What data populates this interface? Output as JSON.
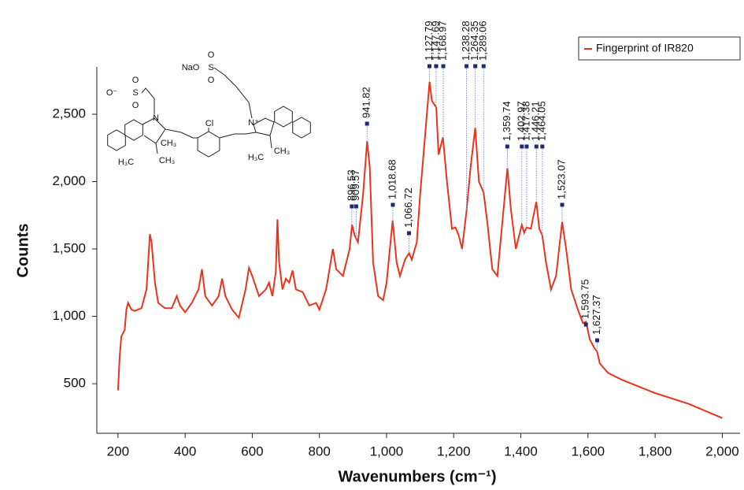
{
  "chart_data": {
    "type": "line",
    "x_label": "Wavenumbers (cm⁻¹)",
    "y_label": "Counts",
    "xlim": [
      137,
      2053
    ],
    "ylim": [
      132,
      2851
    ],
    "xticks": [
      200,
      400,
      600,
      800,
      {
        "value": 1000,
        "label": "1,000"
      },
      {
        "value": 1200,
        "label": "1,200"
      },
      {
        "value": 1400,
        "label": "1,400"
      },
      {
        "value": 1600,
        "label": "1,600"
      },
      {
        "value": 1800,
        "label": "1,800"
      },
      {
        "value": 2000,
        "label": "2,000"
      }
    ],
    "yticks": [
      500,
      {
        "value": 1000,
        "label": "1,000"
      },
      {
        "value": 1500,
        "label": "1,500"
      },
      {
        "value": 2000,
        "label": "2,000"
      },
      {
        "value": 2500,
        "label": "2,500"
      }
    ],
    "legend": "top-right",
    "x": [
      200,
      205,
      210,
      220,
      225,
      230,
      240,
      250,
      270,
      285,
      295,
      300,
      310,
      320,
      340,
      360,
      375,
      385,
      400,
      420,
      440,
      450,
      460,
      480,
      500,
      510,
      520,
      540,
      560,
      580,
      590,
      600,
      620,
      640,
      650,
      660,
      670,
      675,
      680,
      690,
      700,
      710,
      720,
      730,
      750,
      770,
      790,
      800,
      820,
      840,
      850,
      870,
      890,
      897,
      905,
      915,
      930,
      942,
      950,
      960,
      975,
      990,
      1000,
      1018,
      1030,
      1040,
      1055,
      1067,
      1075,
      1090,
      1100,
      1110,
      1128,
      1135,
      1148,
      1155,
      1168,
      1180,
      1195,
      1205,
      1215,
      1225,
      1238,
      1250,
      1264,
      1275,
      1289,
      1300,
      1315,
      1330,
      1345,
      1360,
      1370,
      1385,
      1403,
      1410,
      1417,
      1430,
      1446,
      1455,
      1464,
      1475,
      1490,
      1505,
      1523,
      1535,
      1550,
      1570,
      1585,
      1594,
      1605,
      1620,
      1627,
      1635,
      1660,
      1700,
      1800,
      1900,
      2000
    ],
    "series": [
      {
        "name": "Fingerprint of IR820",
        "color": "#e8341c",
        "values": [
          450,
          700,
          850,
          900,
          1050,
          1100,
          1050,
          1040,
          1060,
          1200,
          1610,
          1550,
          1250,
          1100,
          1060,
          1060,
          1150,
          1080,
          1030,
          1100,
          1200,
          1350,
          1150,
          1080,
          1150,
          1280,
          1150,
          1050,
          990,
          1200,
          1360,
          1300,
          1150,
          1200,
          1250,
          1150,
          1330,
          1720,
          1400,
          1200,
          1280,
          1250,
          1340,
          1200,
          1180,
          1080,
          1100,
          1050,
          1200,
          1500,
          1350,
          1300,
          1500,
          1680,
          1600,
          1550,
          1900,
          2300,
          2100,
          1400,
          1150,
          1120,
          1250,
          1710,
          1400,
          1300,
          1420,
          1470,
          1420,
          1550,
          1900,
          2200,
          2740,
          2600,
          2550,
          2200,
          2330,
          2000,
          1650,
          1660,
          1600,
          1500,
          1780,
          2100,
          2400,
          2000,
          1920,
          1700,
          1350,
          1300,
          1700,
          2100,
          1800,
          1500,
          1680,
          1620,
          1660,
          1650,
          1850,
          1650,
          1600,
          1400,
          1200,
          1300,
          1700,
          1500,
          1200,
          1050,
          950,
          960,
          830,
          760,
          740,
          650,
          580,
          530,
          430,
          350,
          245
        ]
      }
    ],
    "annotations": [
      {
        "x": 896.53,
        "label": "896.53"
      },
      {
        "x": 909.57,
        "label": "909.57"
      },
      {
        "x": 941.82,
        "label": "941.82"
      },
      {
        "x": 1018.68,
        "label": "1,018.68"
      },
      {
        "x": 1066.72,
        "label": "1,066.72"
      },
      {
        "x": 1127.79,
        "label": "1,127.79"
      },
      {
        "x": 1147.69,
        "label": "1,147.69"
      },
      {
        "x": 1168.97,
        "label": "1,168.97"
      },
      {
        "x": 1238.28,
        "label": "1,238.28"
      },
      {
        "x": 1264.35,
        "label": "1,264.35"
      },
      {
        "x": 1289.06,
        "label": "1,289.06"
      },
      {
        "x": 1359.74,
        "label": "1,359.74"
      },
      {
        "x": 1402.97,
        "label": "1,402.97"
      },
      {
        "x": 1417.38,
        "label": "1,417.38"
      },
      {
        "x": 1446.21,
        "label": "1,446.21"
      },
      {
        "x": 1464.05,
        "label": "1,464.05"
      },
      {
        "x": 1523.07,
        "label": "1,523.07"
      },
      {
        "x": 1593.75,
        "label": "1,593.75"
      },
      {
        "x": 1627.37,
        "label": "1,627.37"
      }
    ]
  },
  "structure": {
    "labels": [
      "O⁻",
      "S",
      "O",
      "O",
      "NaO",
      "S",
      "O",
      "O",
      "N",
      "Cl",
      "N⁺",
      "H₃C",
      "CH₃",
      "CH₃",
      "H₃C",
      "CH₃"
    ]
  }
}
